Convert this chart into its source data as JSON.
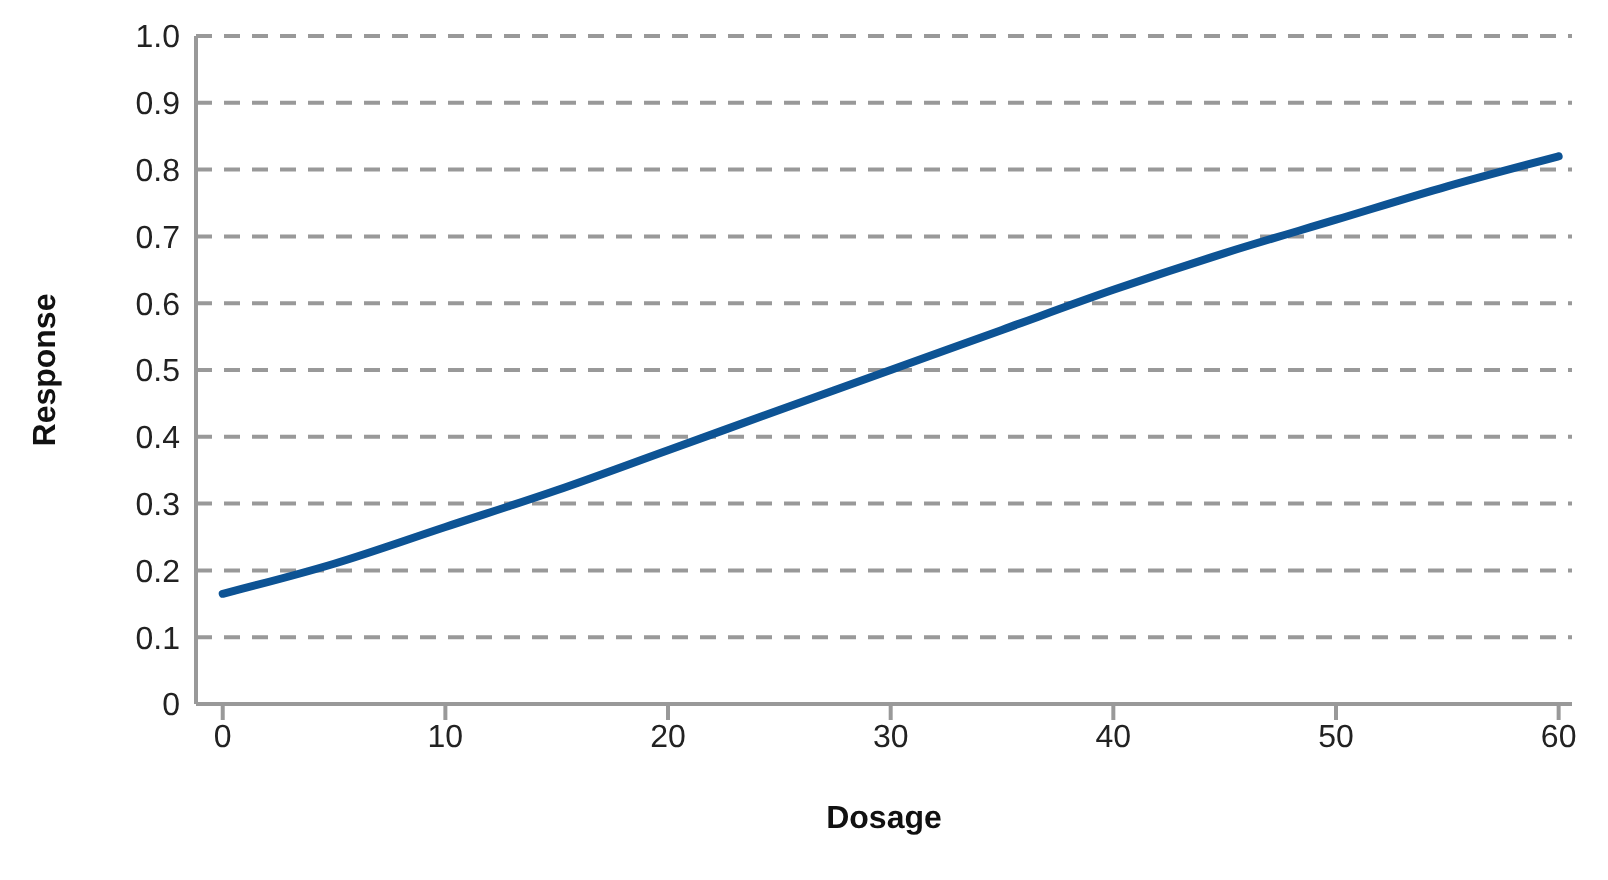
{
  "chart_data": {
    "type": "line",
    "xlabel": "Dosage",
    "ylabel": "Response",
    "x": [
      0,
      5,
      10,
      15,
      20,
      25,
      30,
      35,
      40,
      45,
      50,
      55,
      60
    ],
    "series": [
      {
        "color": "#0d5394",
        "values": [
          0.165,
          0.21,
          0.265,
          0.32,
          0.38,
          0.44,
          0.5,
          0.56,
          0.62,
          0.675,
          0.725,
          0.775,
          0.82
        ]
      }
    ],
    "xlim": [
      -1.2,
      60.6
    ],
    "xticks": [
      0,
      10,
      20,
      30,
      40,
      50,
      60
    ],
    "ylim": [
      0,
      1
    ],
    "yticks": [
      0,
      0.1,
      0.2,
      0.3,
      0.4,
      0.5,
      0.6,
      0.7,
      0.8,
      0.9,
      {
        "value": 1,
        "label": "1.0"
      }
    ],
    "grid": "y",
    "legend": false,
    "marker": "none",
    "line_style": "solid"
  }
}
